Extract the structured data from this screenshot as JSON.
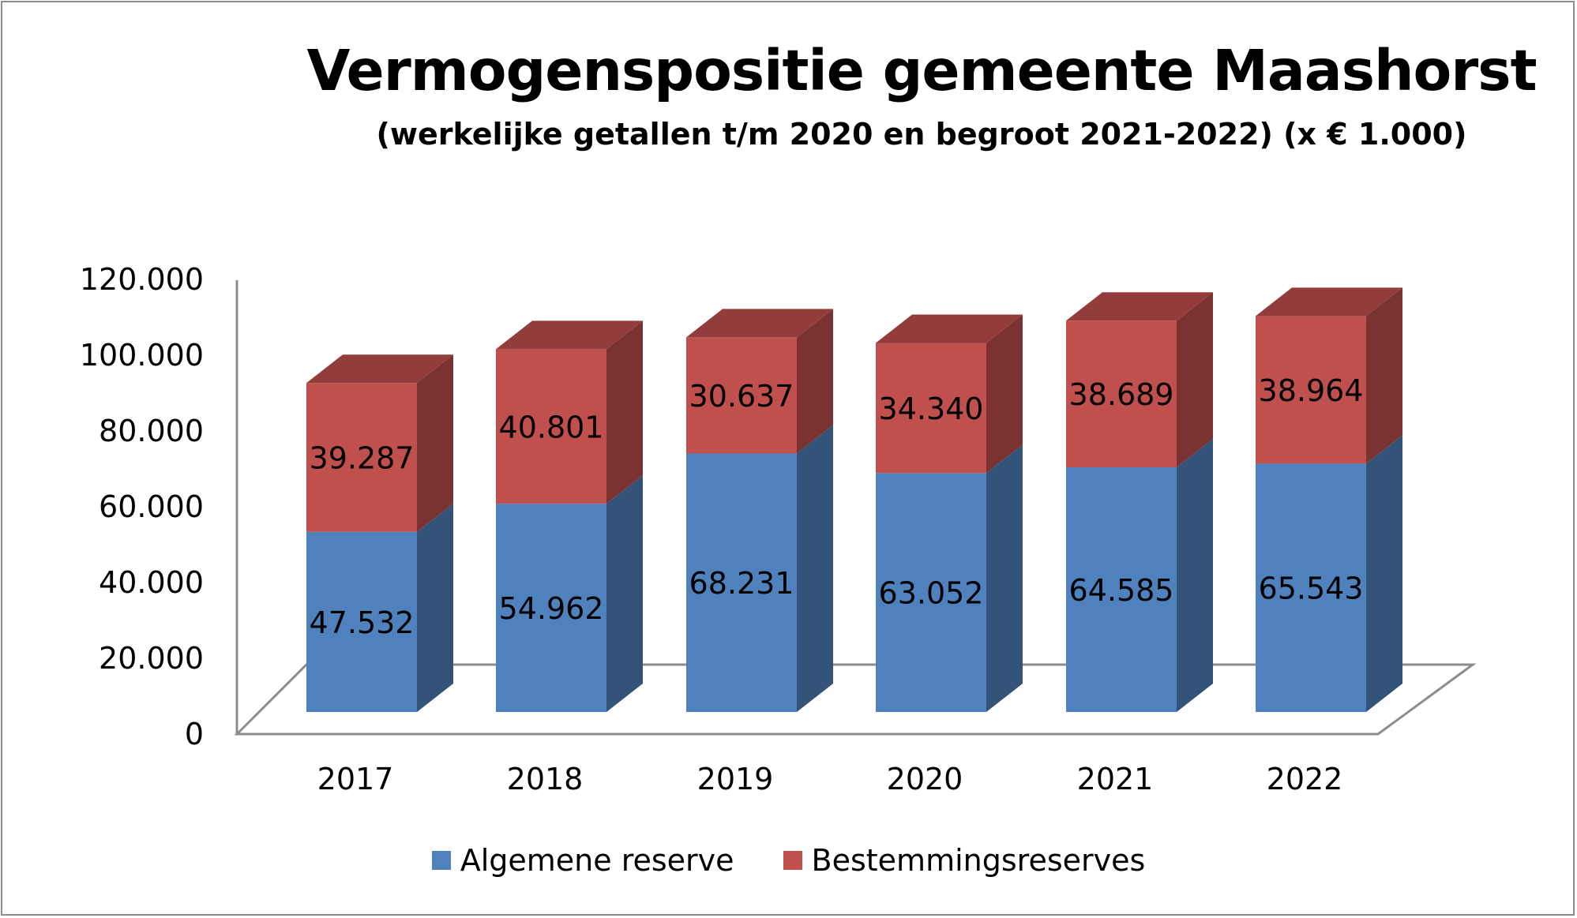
{
  "chart_data": {
    "type": "bar",
    "stacked": true,
    "three_d": true,
    "title": "Vermogenspositie gemeente Maashorst",
    "subtitle": "(werkelijke getallen t/m 2020 en begroot 2021-2022) (x € 1.000)",
    "categories": [
      "2017",
      "2018",
      "2019",
      "2020",
      "2021",
      "2022"
    ],
    "series": [
      {
        "name": "Algemene reserve",
        "color": "#4f81bd",
        "values": [
          47532,
          54962,
          68231,
          63052,
          64585,
          65543
        ],
        "labels": [
          "47.532",
          "54.962",
          "68.231",
          "63.052",
          "64.585",
          "65.543"
        ]
      },
      {
        "name": "Bestemmingsreserves",
        "color": "#c0504d",
        "values": [
          39287,
          40801,
          30637,
          34340,
          38689,
          38964
        ],
        "labels": [
          "39.287",
          "40.801",
          "30.637",
          "34.340",
          "38.689",
          "38.964"
        ]
      }
    ],
    "ylim": [
      0,
      120000
    ],
    "yticks": [
      "0",
      "20.000",
      "40.000",
      "60.000",
      "80.000",
      "100.000",
      "120.000"
    ],
    "legend_position": "bottom",
    "grid": false
  }
}
